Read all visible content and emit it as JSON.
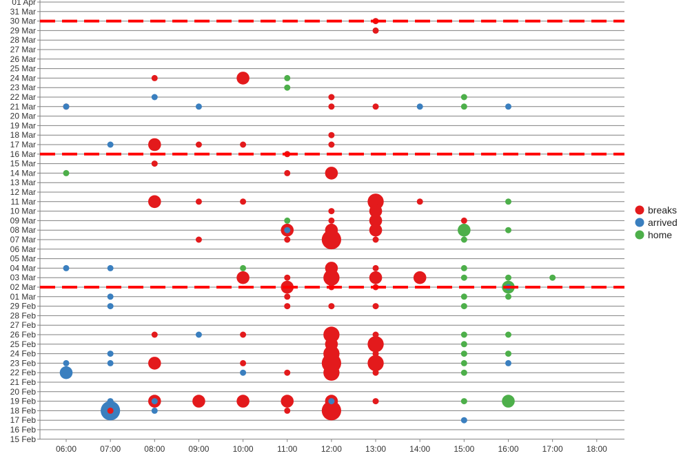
{
  "chart_data": {
    "type": "scatter",
    "x_tick_labels": [
      "06:00",
      "07:00",
      "08:00",
      "09:00",
      "10:00",
      "11:00",
      "12:00",
      "13:00",
      "14:00",
      "15:00",
      "16:00",
      "17:00",
      "18:00"
    ],
    "y_tick_labels": [
      "15 Feb",
      "16 Feb",
      "17 Feb",
      "18 Feb",
      "19 Feb",
      "20 Feb",
      "21 Feb",
      "22 Feb",
      "23 Feb",
      "24 Feb",
      "25 Feb",
      "26 Feb",
      "27 Feb",
      "28 Feb",
      "29 Feb",
      "01 Mar",
      "02 Mar",
      "03 Mar",
      "04 Mar",
      "05 Mar",
      "06 Mar",
      "07 Mar",
      "08 Mar",
      "09 Mar",
      "10 Mar",
      "11 Mar",
      "12 Mar",
      "13 Mar",
      "14 Mar",
      "15 Mar",
      "16 Mar",
      "17 Mar",
      "18 Mar",
      "19 Mar",
      "20 Mar",
      "21 Mar",
      "22 Mar",
      "23 Mar",
      "24 Mar",
      "25 Mar",
      "26 Mar",
      "27 Mar",
      "28 Mar",
      "29 Mar",
      "30 Mar",
      "31 Mar",
      "01 Apr"
    ],
    "xlim": [
      "05:30",
      "18:40"
    ],
    "ylim": [
      "15 Feb",
      "01 Apr"
    ],
    "grid": "horizontal",
    "legend_position": "right",
    "reference_lines": [
      "02 Mar",
      "16 Mar",
      "30 Mar"
    ],
    "series": [
      {
        "name": "breaks",
        "color": "#e31a1c",
        "points": [
          {
            "date": "30 Mar",
            "hour": "13:00",
            "size": 1
          },
          {
            "date": "29 Mar",
            "hour": "13:00",
            "size": 1
          },
          {
            "date": "24 Mar",
            "hour": "08:00",
            "size": 1
          },
          {
            "date": "24 Mar",
            "hour": "10:00",
            "size": 3
          },
          {
            "date": "22 Mar",
            "hour": "12:00",
            "size": 1
          },
          {
            "date": "21 Mar",
            "hour": "06:00",
            "size": 1
          },
          {
            "date": "21 Mar",
            "hour": "12:00",
            "size": 1
          },
          {
            "date": "21 Mar",
            "hour": "13:00",
            "size": 1
          },
          {
            "date": "18 Mar",
            "hour": "12:00",
            "size": 1
          },
          {
            "date": "17 Mar",
            "hour": "08:00",
            "size": 3
          },
          {
            "date": "17 Mar",
            "hour": "09:00",
            "size": 1
          },
          {
            "date": "17 Mar",
            "hour": "10:00",
            "size": 1
          },
          {
            "date": "17 Mar",
            "hour": "12:00",
            "size": 1
          },
          {
            "date": "16 Mar",
            "hour": "11:00",
            "size": 1
          },
          {
            "date": "15 Mar",
            "hour": "08:00",
            "size": 1
          },
          {
            "date": "14 Mar",
            "hour": "11:00",
            "size": 1
          },
          {
            "date": "14 Mar",
            "hour": "12:00",
            "size": 3
          },
          {
            "date": "11 Mar",
            "hour": "08:00",
            "size": 3
          },
          {
            "date": "11 Mar",
            "hour": "09:00",
            "size": 1
          },
          {
            "date": "11 Mar",
            "hour": "10:00",
            "size": 1
          },
          {
            "date": "11 Mar",
            "hour": "13:00",
            "size": 4
          },
          {
            "date": "11 Mar",
            "hour": "14:00",
            "size": 1
          },
          {
            "date": "10 Mar",
            "hour": "12:00",
            "size": 1
          },
          {
            "date": "10 Mar",
            "hour": "13:00",
            "size": 3
          },
          {
            "date": "09 Mar",
            "hour": "12:00",
            "size": 1
          },
          {
            "date": "09 Mar",
            "hour": "13:00",
            "size": 3
          },
          {
            "date": "09 Mar",
            "hour": "15:00",
            "size": 1
          },
          {
            "date": "08 Mar",
            "hour": "11:00",
            "size": 3
          },
          {
            "date": "08 Mar",
            "hour": "12:00",
            "size": 3
          },
          {
            "date": "08 Mar",
            "hour": "13:00",
            "size": 3
          },
          {
            "date": "07 Mar",
            "hour": "09:00",
            "size": 1
          },
          {
            "date": "07 Mar",
            "hour": "11:00",
            "size": 1
          },
          {
            "date": "07 Mar",
            "hour": "12:00",
            "size": 5
          },
          {
            "date": "07 Mar",
            "hour": "13:00",
            "size": 1
          },
          {
            "date": "04 Mar",
            "hour": "12:00",
            "size": 3
          },
          {
            "date": "04 Mar",
            "hour": "13:00",
            "size": 1
          },
          {
            "date": "03 Mar",
            "hour": "10:00",
            "size": 3
          },
          {
            "date": "03 Mar",
            "hour": "11:00",
            "size": 1
          },
          {
            "date": "03 Mar",
            "hour": "12:00",
            "size": 4
          },
          {
            "date": "03 Mar",
            "hour": "13:00",
            "size": 3
          },
          {
            "date": "03 Mar",
            "hour": "14:00",
            "size": 3
          },
          {
            "date": "02 Mar",
            "hour": "11:00",
            "size": 3
          },
          {
            "date": "02 Mar",
            "hour": "12:00",
            "size": 1
          },
          {
            "date": "02 Mar",
            "hour": "13:00",
            "size": 1
          },
          {
            "date": "01 Mar",
            "hour": "11:00",
            "size": 1
          },
          {
            "date": "29 Feb",
            "hour": "11:00",
            "size": 1
          },
          {
            "date": "29 Feb",
            "hour": "12:00",
            "size": 1
          },
          {
            "date": "29 Feb",
            "hour": "13:00",
            "size": 1
          },
          {
            "date": "26 Feb",
            "hour": "08:00",
            "size": 1
          },
          {
            "date": "26 Feb",
            "hour": "10:00",
            "size": 1
          },
          {
            "date": "26 Feb",
            "hour": "12:00",
            "size": 4
          },
          {
            "date": "26 Feb",
            "hour": "13:00",
            "size": 1
          },
          {
            "date": "25 Feb",
            "hour": "12:00",
            "size": 3
          },
          {
            "date": "25 Feb",
            "hour": "13:00",
            "size": 4
          },
          {
            "date": "24 Feb",
            "hour": "12:00",
            "size": 4
          },
          {
            "date": "24 Feb",
            "hour": "13:00",
            "size": 1
          },
          {
            "date": "23 Feb",
            "hour": "08:00",
            "size": 3
          },
          {
            "date": "23 Feb",
            "hour": "10:00",
            "size": 1
          },
          {
            "date": "23 Feb",
            "hour": "12:00",
            "size": 5
          },
          {
            "date": "23 Feb",
            "hour": "13:00",
            "size": 4
          },
          {
            "date": "22 Feb",
            "hour": "11:00",
            "size": 1
          },
          {
            "date": "22 Feb",
            "hour": "12:00",
            "size": 4
          },
          {
            "date": "22 Feb",
            "hour": "13:00",
            "size": 1
          },
          {
            "date": "19 Feb",
            "hour": "08:00",
            "size": 3
          },
          {
            "date": "19 Feb",
            "hour": "09:00",
            "size": 3
          },
          {
            "date": "19 Feb",
            "hour": "10:00",
            "size": 3
          },
          {
            "date": "19 Feb",
            "hour": "11:00",
            "size": 3
          },
          {
            "date": "19 Feb",
            "hour": "12:00",
            "size": 3
          },
          {
            "date": "19 Feb",
            "hour": "13:00",
            "size": 1
          },
          {
            "date": "18 Feb",
            "hour": "07:00",
            "size": 1
          },
          {
            "date": "18 Feb",
            "hour": "11:00",
            "size": 1
          },
          {
            "date": "18 Feb",
            "hour": "12:00",
            "size": 5
          }
        ]
      },
      {
        "name": "arrived",
        "color": "#3a7fbf",
        "points": [
          {
            "date": "22 Mar",
            "hour": "08:00",
            "size": 1
          },
          {
            "date": "21 Mar",
            "hour": "06:00",
            "size": 1
          },
          {
            "date": "21 Mar",
            "hour": "09:00",
            "size": 1
          },
          {
            "date": "21 Mar",
            "hour": "14:00",
            "size": 1
          },
          {
            "date": "21 Mar",
            "hour": "16:00",
            "size": 1
          },
          {
            "date": "17 Mar",
            "hour": "07:00",
            "size": 1
          },
          {
            "date": "08 Mar",
            "hour": "11:00",
            "size": 1
          },
          {
            "date": "04 Mar",
            "hour": "06:00",
            "size": 1
          },
          {
            "date": "04 Mar",
            "hour": "07:00",
            "size": 1
          },
          {
            "date": "02 Mar",
            "hour": "16:00",
            "size": 1
          },
          {
            "date": "01 Mar",
            "hour": "07:00",
            "size": 1
          },
          {
            "date": "29 Feb",
            "hour": "07:00",
            "size": 1
          },
          {
            "date": "26 Feb",
            "hour": "09:00",
            "size": 1
          },
          {
            "date": "24 Feb",
            "hour": "07:00",
            "size": 1
          },
          {
            "date": "23 Feb",
            "hour": "06:00",
            "size": 1
          },
          {
            "date": "23 Feb",
            "hour": "07:00",
            "size": 1
          },
          {
            "date": "23 Feb",
            "hour": "16:00",
            "size": 1
          },
          {
            "date": "22 Feb",
            "hour": "06:00",
            "size": 3
          },
          {
            "date": "22 Feb",
            "hour": "10:00",
            "size": 1
          },
          {
            "date": "19 Feb",
            "hour": "07:00",
            "size": 1
          },
          {
            "date": "19 Feb",
            "hour": "08:00",
            "size": 1
          },
          {
            "date": "19 Feb",
            "hour": "12:00",
            "size": 1
          },
          {
            "date": "18 Feb",
            "hour": "07:00",
            "size": 5
          },
          {
            "date": "18 Feb",
            "hour": "08:00",
            "size": 1
          },
          {
            "date": "17 Feb",
            "hour": "15:00",
            "size": 1
          }
        ]
      },
      {
        "name": "home",
        "color": "#4daf4a",
        "points": [
          {
            "date": "24 Mar",
            "hour": "11:00",
            "size": 1
          },
          {
            "date": "23 Mar",
            "hour": "11:00",
            "size": 1
          },
          {
            "date": "22 Mar",
            "hour": "15:00",
            "size": 1
          },
          {
            "date": "21 Mar",
            "hour": "15:00",
            "size": 1
          },
          {
            "date": "14 Mar",
            "hour": "06:00",
            "size": 1
          },
          {
            "date": "11 Mar",
            "hour": "16:00",
            "size": 1
          },
          {
            "date": "09 Mar",
            "hour": "11:00",
            "size": 1
          },
          {
            "date": "08 Mar",
            "hour": "15:00",
            "size": 3
          },
          {
            "date": "08 Mar",
            "hour": "16:00",
            "size": 1
          },
          {
            "date": "07 Mar",
            "hour": "15:00",
            "size": 1
          },
          {
            "date": "04 Mar",
            "hour": "10:00",
            "size": 1
          },
          {
            "date": "04 Mar",
            "hour": "15:00",
            "size": 1
          },
          {
            "date": "03 Mar",
            "hour": "15:00",
            "size": 1
          },
          {
            "date": "03 Mar",
            "hour": "16:00",
            "size": 1
          },
          {
            "date": "03 Mar",
            "hour": "17:00",
            "size": 1
          },
          {
            "date": "02 Mar",
            "hour": "16:00",
            "size": 3
          },
          {
            "date": "01 Mar",
            "hour": "15:00",
            "size": 1
          },
          {
            "date": "01 Mar",
            "hour": "16:00",
            "size": 1
          },
          {
            "date": "29 Feb",
            "hour": "15:00",
            "size": 1
          },
          {
            "date": "26 Feb",
            "hour": "15:00",
            "size": 1
          },
          {
            "date": "26 Feb",
            "hour": "16:00",
            "size": 1
          },
          {
            "date": "25 Feb",
            "hour": "15:00",
            "size": 1
          },
          {
            "date": "24 Feb",
            "hour": "15:00",
            "size": 1
          },
          {
            "date": "24 Feb",
            "hour": "16:00",
            "size": 1
          },
          {
            "date": "23 Feb",
            "hour": "15:00",
            "size": 1
          },
          {
            "date": "22 Feb",
            "hour": "15:00",
            "size": 1
          },
          {
            "date": "19 Feb",
            "hour": "15:00",
            "size": 1
          },
          {
            "date": "19 Feb",
            "hour": "16:00",
            "size": 3
          }
        ]
      }
    ],
    "reference_line_color": "#ff0000"
  }
}
